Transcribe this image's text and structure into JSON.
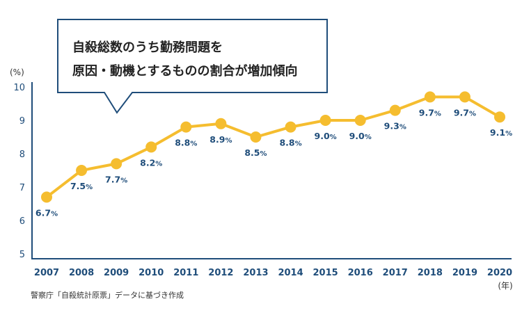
{
  "colors": {
    "axis": "#1f4d7a",
    "line": "#f5bd2f",
    "label": "#1f4d7a",
    "box_border": "#1f4d7a"
  },
  "callout": {
    "line1": "自殺総数のうち勤務問題を",
    "line2": "原因・動機とするものの割合が増加傾向"
  },
  "source": "警察庁「自殺統計原票」データに基づき作成",
  "chart_data": {
    "type": "line",
    "x": [
      "2007",
      "2008",
      "2009",
      "2010",
      "2011",
      "2012",
      "2013",
      "2014",
      "2015",
      "2016",
      "2017",
      "2018",
      "2019",
      "2020"
    ],
    "values": [
      6.7,
      7.5,
      7.7,
      8.2,
      8.8,
      8.9,
      8.5,
      8.8,
      9.0,
      9.0,
      9.3,
      9.7,
      9.7,
      9.1
    ],
    "data_labels": [
      "6.7",
      "7.5",
      "7.7",
      "8.2",
      "8.8",
      "8.9",
      "8.5",
      "8.8",
      "9.0",
      "9.0",
      "9.3",
      "9.7",
      "9.7",
      "9.1"
    ],
    "label_unit": "%",
    "ylabel": "(%)",
    "xunit": "(年)",
    "yticks": [
      "5",
      "6",
      "7",
      "8",
      "9",
      "10"
    ],
    "ylim": [
      5,
      10
    ],
    "grid": false
  }
}
